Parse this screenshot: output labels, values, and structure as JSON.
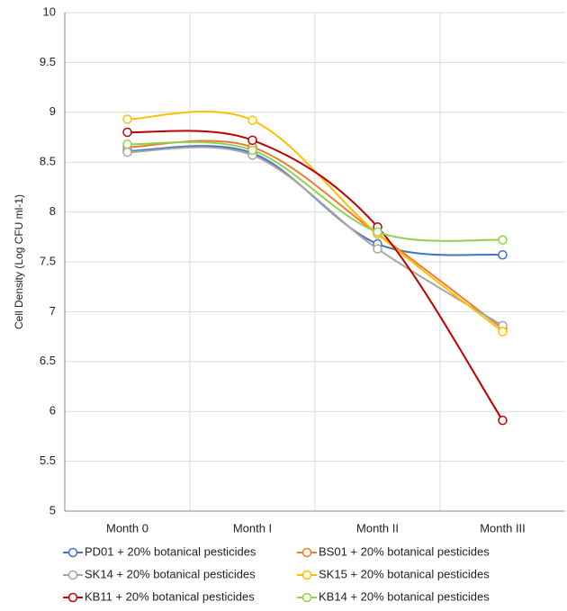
{
  "chart_data": {
    "type": "line",
    "y_label": "Cell Density (Log CFU ml-1)",
    "categories": [
      "Month 0",
      "Month I",
      "Month II",
      "Month III"
    ],
    "series": [
      {
        "name": "PD01 + 20% botanical pesticides",
        "color": "#4472c4",
        "values": [
          8.61,
          8.59,
          7.68,
          7.57
        ]
      },
      {
        "name": "BS01 + 20% botanical pesticides",
        "color": "#ed7d31",
        "values": [
          8.65,
          8.65,
          7.78,
          6.83
        ]
      },
      {
        "name": "SK14 + 20% botanical pesticides",
        "color": "#a5a5a5",
        "values": [
          8.6,
          8.57,
          7.63,
          6.86
        ]
      },
      {
        "name": "SK15 + 20% botanical pesticides",
        "color": "#ffc000",
        "values": [
          8.93,
          8.92,
          7.78,
          6.8
        ]
      },
      {
        "name": "KB11 + 20% botanical pesticides",
        "color": "#c00000",
        "values": [
          8.8,
          8.72,
          7.85,
          5.91
        ]
      },
      {
        "name": "KB14 + 20% botanical pesticides",
        "color": "#92d050",
        "values": [
          8.68,
          8.62,
          7.8,
          7.72
        ]
      }
    ],
    "ylim": [
      5,
      10
    ],
    "yticks": [
      5,
      5.5,
      6,
      6.5,
      7,
      7.5,
      8,
      8.5,
      9,
      9.5,
      10
    ],
    "grid": true,
    "smooth": true,
    "legend": "bottom"
  }
}
